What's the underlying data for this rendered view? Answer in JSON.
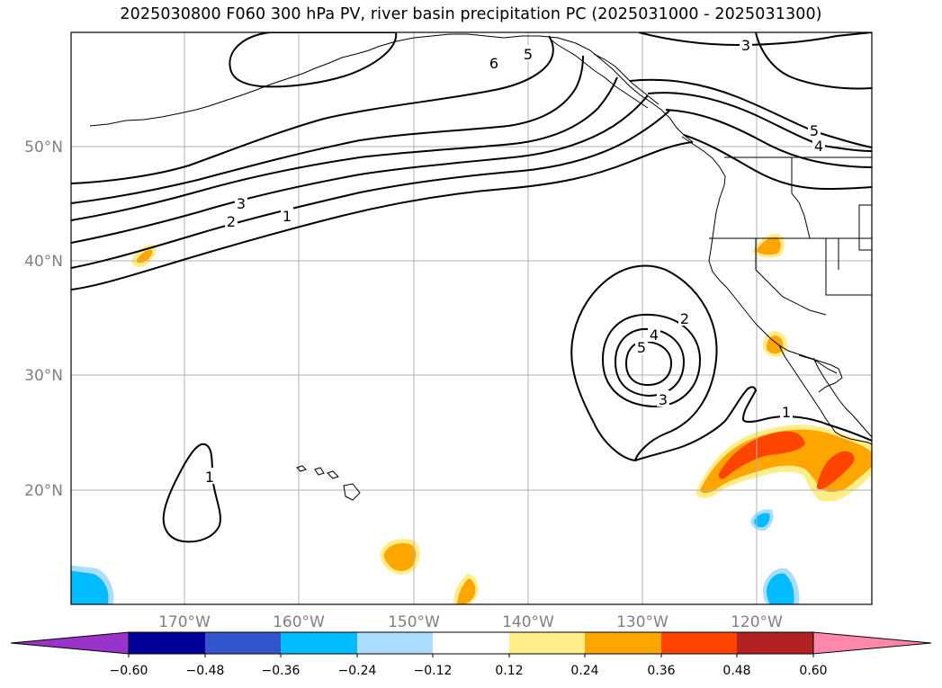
{
  "title": "2025030800 F060 300 hPa PV, river basin precipitation PC (2025031000 - 2025031300)",
  "lat_labels": [
    "50°N",
    "40°N",
    "30°N",
    "20°N"
  ],
  "lon_labels": [
    "170°W",
    "160°W",
    "150°W",
    "140°W",
    "130°W",
    "120°W"
  ],
  "contour_labels": {
    "top_6": "6",
    "top_5": "5",
    "top_3": "3",
    "east_5": "5",
    "east_4": "4",
    "jet_3": "3",
    "jet_2": "2",
    "jet_1": "1",
    "low_2": "2",
    "low_4": "4",
    "low_5": "5",
    "low_3": "3",
    "trough_1": "1",
    "west_1": "1"
  },
  "colorbar": {
    "colors": [
      "#9933cc",
      "#000099",
      "#3355cc",
      "#00bbff",
      "#aaddff",
      "#ffffff",
      "#ffee88",
      "#ffa500",
      "#ff4400",
      "#b22222",
      "#ff88aa"
    ],
    "tick_labels": [
      "−0.60",
      "−0.48",
      "−0.36",
      "−0.24",
      "−0.12",
      "0.12",
      "0.24",
      "0.36",
      "0.48",
      "0.60"
    ]
  }
}
